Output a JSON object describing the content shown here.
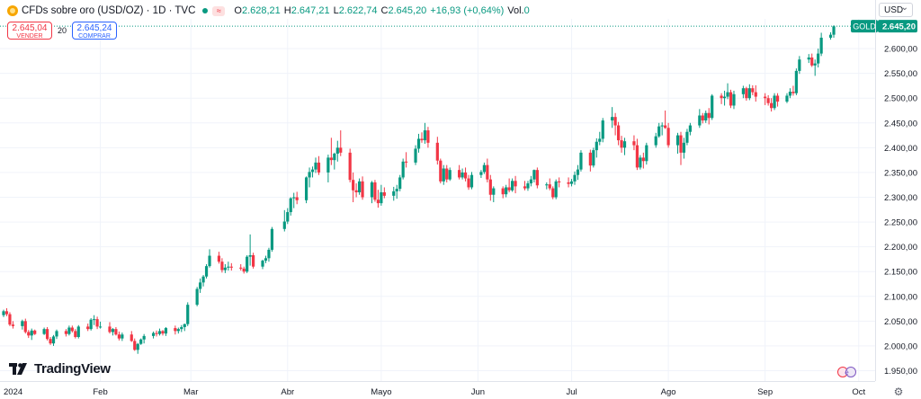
{
  "legend": {
    "symbol": "CFDs sobre oro (USD/OZ) · 1D · TVC",
    "badge": "≈",
    "o_label": "O",
    "o": "2.628,21",
    "h_label": "H",
    "h": "2.647,21",
    "l_label": "L",
    "l": "2.622,74",
    "c_label": "C",
    "c": "2.645,20",
    "change": "+16,93 (+0,64%)",
    "vol_label": "Vol.",
    "vol": "0"
  },
  "trade": {
    "sell_price": "2.645,04",
    "sell_label": "VENDER",
    "spread": "20",
    "buy_price": "2.645,24",
    "buy_label": "COMPRAR"
  },
  "currency": "USD",
  "brand": "TradingView",
  "colors": {
    "up": "#089981",
    "down": "#f23645",
    "grid": "#f0f3fa"
  },
  "chart_data": {
    "type": "candlestick",
    "symbol_tag": "GOLD",
    "last_price": 2645.2,
    "last_price_label": "2.645,20",
    "ylim": [
      1940,
      2660
    ],
    "yticks": [
      1950,
      2000,
      2050,
      2100,
      2150,
      2200,
      2250,
      2300,
      2350,
      2400,
      2450,
      2500,
      2550,
      2600
    ],
    "ytick_labels": [
      "1.950,00",
      "2.000,00",
      "2.050,00",
      "2.100,00",
      "2.150,00",
      "2.200,00",
      "2.250,00",
      "2.300,00",
      "2.350,00",
      "2.400,00",
      "2.450,00",
      "2.500,00",
      "2.550,00",
      "2.600,00"
    ],
    "xticks": [
      {
        "label": "2024",
        "day": 0
      },
      {
        "label": "Feb",
        "day": 31
      },
      {
        "label": "Mar",
        "day": 60
      },
      {
        "label": "Abr",
        "day": 91
      },
      {
        "label": "Mayo",
        "day": 121
      },
      {
        "label": "Jun",
        "day": 152
      },
      {
        "label": "Jul",
        "day": 182
      },
      {
        "label": "Ago",
        "day": 213
      },
      {
        "label": "Sep",
        "day": 244
      },
      {
        "label": "Oct",
        "day": 274
      }
    ],
    "x_unit": "days since 2024-01-01",
    "grid": true,
    "candles": [
      [
        0,
        2062,
        2073,
        2058,
        2070
      ],
      [
        1,
        2070,
        2076,
        2060,
        2064
      ],
      [
        2,
        2064,
        2068,
        2040,
        2043
      ],
      [
        3,
        2043,
        2050,
        2035,
        2040
      ],
      [
        6,
        2040,
        2053,
        2033,
        2050
      ],
      [
        7,
        2050,
        2055,
        2025,
        2028
      ],
      [
        8,
        2028,
        2032,
        2016,
        2021
      ],
      [
        9,
        2021,
        2035,
        2012,
        2031
      ],
      [
        10,
        2031,
        2033,
        2022,
        2024
      ],
      [
        13,
        2024,
        2037,
        2022,
        2034
      ],
      [
        14,
        2034,
        2038,
        2011,
        2014
      ],
      [
        15,
        2014,
        2018,
        2002,
        2005
      ],
      [
        16,
        2005,
        2022,
        2000,
        2019
      ],
      [
        17,
        2019,
        2033,
        2014,
        2030
      ],
      [
        20,
        2030,
        2034,
        2019,
        2024
      ],
      [
        21,
        2024,
        2041,
        2021,
        2037
      ],
      [
        22,
        2037,
        2041,
        2027,
        2030
      ],
      [
        23,
        2030,
        2034,
        2015,
        2018
      ],
      [
        24,
        2018,
        2042,
        2015,
        2039
      ],
      [
        27,
        2039,
        2045,
        2030,
        2034
      ],
      [
        28,
        2034,
        2056,
        2031,
        2053
      ],
      [
        29,
        2053,
        2062,
        2042,
        2054
      ],
      [
        30,
        2054,
        2059,
        2034,
        2039
      ],
      [
        31,
        2039,
        2049,
        2035,
        2039
      ],
      [
        34,
        2039,
        2048,
        2025,
        2028
      ],
      [
        35,
        2028,
        2036,
        2021,
        2034
      ],
      [
        36,
        2034,
        2038,
        2021,
        2023
      ],
      [
        37,
        2023,
        2029,
        2011,
        2015
      ],
      [
        38,
        2015,
        2027,
        2010,
        2023
      ],
      [
        41,
        2023,
        2030,
        2008,
        2010
      ],
      [
        42,
        2010,
        2015,
        1990,
        1992
      ],
      [
        43,
        1992,
        2006,
        1984,
        2004
      ],
      [
        44,
        2004,
        2015,
        2002,
        2013
      ],
      [
        45,
        2013,
        2024,
        2005,
        2020
      ],
      [
        48,
        2020,
        2029,
        2015,
        2026
      ],
      [
        49,
        2026,
        2031,
        2019,
        2024
      ],
      [
        50,
        2024,
        2035,
        2021,
        2030
      ],
      [
        51,
        2030,
        2032,
        2021,
        2025
      ],
      [
        52,
        2025,
        2038,
        2020,
        2036
      ],
      [
        55,
        2036,
        2041,
        2023,
        2030
      ],
      [
        56,
        2030,
        2037,
        2025,
        2034
      ],
      [
        57,
        2034,
        2042,
        2028,
        2038
      ],
      [
        58,
        2038,
        2045,
        2030,
        2044
      ],
      [
        59,
        2044,
        2088,
        2040,
        2083
      ],
      [
        62,
        2083,
        2119,
        2080,
        2115
      ],
      [
        63,
        2115,
        2136,
        2107,
        2128
      ],
      [
        64,
        2128,
        2143,
        2120,
        2140
      ],
      [
        65,
        2140,
        2165,
        2136,
        2161
      ],
      [
        66,
        2161,
        2195,
        2158,
        2182
      ],
      [
        69,
        2182,
        2190,
        2166,
        2170
      ],
      [
        70,
        2170,
        2177,
        2148,
        2153
      ],
      [
        71,
        2153,
        2165,
        2147,
        2158
      ],
      [
        72,
        2158,
        2170,
        2152,
        2160
      ],
      [
        73,
        2160,
        2167,
        2152,
        2158
      ],
      [
        76,
        2158,
        2165,
        2152,
        2156
      ],
      [
        77,
        2156,
        2160,
        2146,
        2150
      ],
      [
        78,
        2150,
        2183,
        2147,
        2180
      ],
      [
        79,
        2180,
        2225,
        2162,
        2183
      ],
      [
        80,
        2183,
        2188,
        2156,
        2160
      ],
      [
        83,
        2160,
        2174,
        2155,
        2172
      ],
      [
        84,
        2172,
        2182,
        2167,
        2177
      ],
      [
        85,
        2177,
        2198,
        2170,
        2194
      ],
      [
        86,
        2194,
        2240,
        2190,
        2236
      ],
      [
        90,
        2236,
        2274,
        2231,
        2251
      ],
      [
        91,
        2251,
        2278,
        2246,
        2270
      ],
      [
        92,
        2270,
        2300,
        2263,
        2298
      ],
      [
        93,
        2298,
        2309,
        2278,
        2300
      ],
      [
        94,
        2300,
        2311,
        2286,
        2294
      ],
      [
        97,
        2294,
        2342,
        2288,
        2340
      ],
      [
        98,
        2340,
        2360,
        2320,
        2351
      ],
      [
        99,
        2351,
        2362,
        2340,
        2356
      ],
      [
        100,
        2356,
        2380,
        2349,
        2370
      ],
      [
        101,
        2370,
        2383,
        2345,
        2350
      ],
      [
        104,
        2350,
        2386,
        2330,
        2380
      ],
      [
        105,
        2380,
        2420,
        2365,
        2375
      ],
      [
        106,
        2375,
        2390,
        2356,
        2388
      ],
      [
        107,
        2388,
        2414,
        2372,
        2400
      ],
      [
        108,
        2400,
        2435,
        2383,
        2390
      ],
      [
        111,
        2390,
        2398,
        2330,
        2335
      ],
      [
        112,
        2335,
        2350,
        2290,
        2314
      ],
      [
        113,
        2314,
        2328,
        2300,
        2310
      ],
      [
        114,
        2310,
        2338,
        2305,
        2332
      ],
      [
        115,
        2332,
        2342,
        2295,
        2300
      ],
      [
        118,
        2300,
        2333,
        2288,
        2330
      ],
      [
        119,
        2330,
        2335,
        2291,
        2295
      ],
      [
        120,
        2295,
        2315,
        2279,
        2288
      ],
      [
        121,
        2288,
        2325,
        2283,
        2310
      ],
      [
        122,
        2310,
        2320,
        2298,
        2303
      ],
      [
        125,
        2303,
        2321,
        2293,
        2312
      ],
      [
        126,
        2312,
        2325,
        2297,
        2317
      ],
      [
        127,
        2317,
        2345,
        2312,
        2340
      ],
      [
        128,
        2340,
        2378,
        2336,
        2372
      ],
      [
        129,
        2372,
        2391,
        2360,
        2370
      ],
      [
        132,
        2370,
        2405,
        2365,
        2398
      ],
      [
        133,
        2398,
        2428,
        2390,
        2418
      ],
      [
        134,
        2418,
        2431,
        2410,
        2415
      ],
      [
        135,
        2415,
        2450,
        2408,
        2435
      ],
      [
        136,
        2435,
        2442,
        2400,
        2410
      ],
      [
        139,
        2410,
        2422,
        2366,
        2374
      ],
      [
        140,
        2374,
        2378,
        2328,
        2332
      ],
      [
        141,
        2332,
        2365,
        2325,
        2358
      ],
      [
        142,
        2358,
        2365,
        2330,
        2336
      ],
      [
        143,
        2336,
        2360,
        2333,
        2355
      ],
      [
        146,
        2355,
        2365,
        2336,
        2340
      ],
      [
        147,
        2340,
        2358,
        2336,
        2350
      ],
      [
        148,
        2350,
        2360,
        2332,
        2338
      ],
      [
        149,
        2338,
        2345,
        2315,
        2320
      ],
      [
        150,
        2320,
        2351,
        2316,
        2345
      ],
      [
        153,
        2345,
        2355,
        2339,
        2351
      ],
      [
        154,
        2351,
        2370,
        2347,
        2365
      ],
      [
        155,
        2365,
        2378,
        2330,
        2336
      ],
      [
        156,
        2336,
        2345,
        2293,
        2305
      ],
      [
        157,
        2305,
        2322,
        2290,
        2318
      ],
      [
        160,
        2318,
        2322,
        2298,
        2306
      ],
      [
        161,
        2306,
        2325,
        2300,
        2320
      ],
      [
        162,
        2320,
        2338,
        2310,
        2314
      ],
      [
        163,
        2314,
        2338,
        2311,
        2333
      ],
      [
        164,
        2333,
        2343,
        2308,
        2322
      ],
      [
        167,
        2322,
        2333,
        2314,
        2318
      ],
      [
        168,
        2318,
        2333,
        2313,
        2328
      ],
      [
        169,
        2328,
        2343,
        2322,
        2336
      ],
      [
        170,
        2336,
        2356,
        2330,
        2355
      ],
      [
        171,
        2355,
        2360,
        2318,
        2324
      ],
      [
        174,
        2324,
        2330,
        2316,
        2326
      ],
      [
        175,
        2326,
        2338,
        2314,
        2318
      ],
      [
        176,
        2318,
        2322,
        2296,
        2300
      ],
      [
        177,
        2300,
        2336,
        2296,
        2332
      ],
      [
        178,
        2332,
        2340,
        2320,
        2330
      ],
      [
        181,
        2330,
        2340,
        2320,
        2327
      ],
      [
        182,
        2327,
        2337,
        2322,
        2332
      ],
      [
        183,
        2332,
        2352,
        2325,
        2345
      ],
      [
        184,
        2345,
        2365,
        2335,
        2356
      ],
      [
        185,
        2356,
        2395,
        2352,
        2390
      ],
      [
        188,
        2390,
        2396,
        2352,
        2364
      ],
      [
        189,
        2364,
        2400,
        2360,
        2395
      ],
      [
        190,
        2395,
        2419,
        2380,
        2412
      ],
      [
        191,
        2412,
        2432,
        2405,
        2418
      ],
      [
        192,
        2418,
        2460,
        2411,
        2455
      ],
      [
        195,
        2455,
        2482,
        2440,
        2462
      ],
      [
        196,
        2462,
        2470,
        2425,
        2445
      ],
      [
        197,
        2445,
        2452,
        2405,
        2415
      ],
      [
        198,
        2415,
        2424,
        2390,
        2400
      ],
      [
        199,
        2400,
        2420,
        2385,
        2413
      ],
      [
        202,
        2413,
        2425,
        2395,
        2405
      ],
      [
        203,
        2405,
        2418,
        2355,
        2360
      ],
      [
        204,
        2360,
        2385,
        2356,
        2380
      ],
      [
        205,
        2380,
        2390,
        2358,
        2373
      ],
      [
        206,
        2373,
        2410,
        2366,
        2405
      ],
      [
        209,
        2405,
        2430,
        2400,
        2423
      ],
      [
        210,
        2423,
        2450,
        2420,
        2443
      ],
      [
        211,
        2443,
        2451,
        2425,
        2445
      ],
      [
        212,
        2445,
        2475,
        2438,
        2440
      ],
      [
        213,
        2440,
        2450,
        2400,
        2405
      ],
      [
        216,
        2405,
        2430,
        2388,
        2425
      ],
      [
        217,
        2425,
        2432,
        2365,
        2390
      ],
      [
        218,
        2390,
        2420,
        2378,
        2410
      ],
      [
        219,
        2410,
        2438,
        2405,
        2432
      ],
      [
        220,
        2432,
        2450,
        2425,
        2445
      ],
      [
        223,
        2445,
        2478,
        2440,
        2465
      ],
      [
        224,
        2465,
        2470,
        2449,
        2455
      ],
      [
        225,
        2455,
        2475,
        2450,
        2470
      ],
      [
        226,
        2470,
        2480,
        2447,
        2460
      ],
      [
        227,
        2460,
        2508,
        2456,
        2505
      ],
      [
        230,
        2505,
        2510,
        2488,
        2500
      ],
      [
        231,
        2500,
        2515,
        2485,
        2503
      ],
      [
        232,
        2503,
        2530,
        2498,
        2512
      ],
      [
        233,
        2512,
        2517,
        2480,
        2485
      ],
      [
        234,
        2485,
        2515,
        2478,
        2508
      ],
      [
        237,
        2508,
        2525,
        2500,
        2520
      ],
      [
        238,
        2520,
        2523,
        2495,
        2500
      ],
      [
        239,
        2500,
        2528,
        2496,
        2520
      ],
      [
        240,
        2520,
        2526,
        2506,
        2512
      ],
      [
        241,
        2512,
        2526,
        2493,
        2503
      ],
      [
        244,
        2503,
        2510,
        2486,
        2500
      ],
      [
        245,
        2500,
        2506,
        2485,
        2490
      ],
      [
        246,
        2490,
        2500,
        2473,
        2480
      ],
      [
        247,
        2480,
        2510,
        2476,
        2505
      ],
      [
        248,
        2505,
        2510,
        2483,
        2493
      ],
      [
        251,
        2493,
        2510,
        2490,
        2505
      ],
      [
        252,
        2505,
        2520,
        2500,
        2513
      ],
      [
        253,
        2513,
        2525,
        2505,
        2510
      ],
      [
        254,
        2510,
        2560,
        2506,
        2555
      ],
      [
        255,
        2555,
        2585,
        2549,
        2578
      ],
      [
        258,
        2578,
        2589,
        2571,
        2582
      ],
      [
        259,
        2582,
        2590,
        2563,
        2566
      ],
      [
        260,
        2566,
        2578,
        2545,
        2570
      ],
      [
        261,
        2570,
        2600,
        2562,
        2590
      ],
      [
        262,
        2590,
        2632,
        2585,
        2622
      ],
      [
        265,
        2622,
        2633,
        2618,
        2628
      ],
      [
        266,
        2628,
        2647,
        2622,
        2645
      ]
    ]
  }
}
